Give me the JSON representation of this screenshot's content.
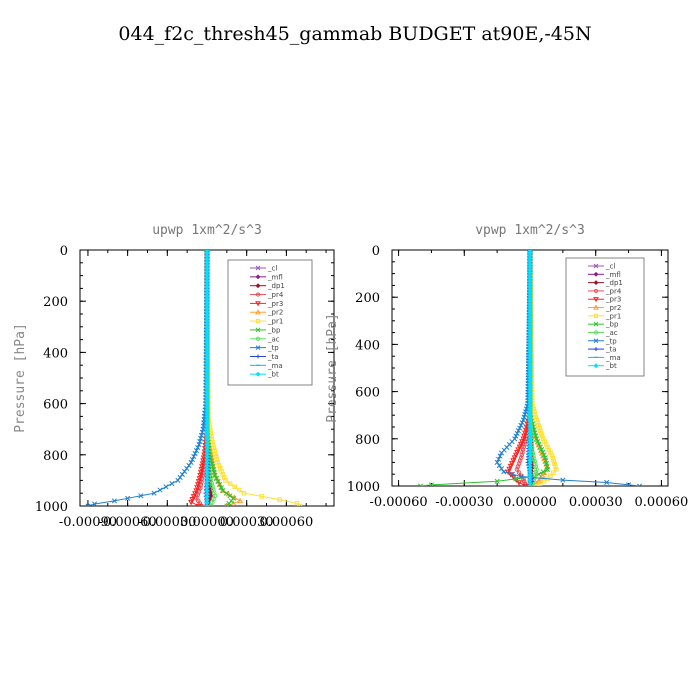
{
  "figure": {
    "title": "044_f2c_thresh45_gammab  BUDGET at90E,-45N"
  },
  "chart_data": [
    {
      "type": "line",
      "title": "upwp   1xm^2/s^3",
      "ylabel": "Pressure [hPa]",
      "xlim": [
        -0.00096,
        0.00096
      ],
      "ylim": [
        1000,
        0
      ],
      "xticks": [
        -0.0009,
        -0.0006,
        -0.0003,
        0.0,
        0.0003,
        0.0006
      ],
      "xtick_labels": [
        "-0.00090",
        "-0.00060",
        "-0.00030",
        "0.00000",
        "0.00030",
        "0.00060"
      ],
      "yticks": [
        0,
        200,
        400,
        600,
        800,
        1000
      ],
      "ytick_labels": [
        "0",
        "200",
        "400",
        "600",
        "800",
        "1000"
      ],
      "legend_position": "top-right",
      "series": [
        {
          "name": "_cl",
          "color": "#9b59b6",
          "marker": "x",
          "values": [
            [
              0,
              0
            ],
            [
              0,
              700
            ],
            [
              0,
              1000
            ]
          ]
        },
        {
          "name": "_mfl",
          "color": "#8e1a8e",
          "marker": "diamond",
          "values": [
            [
              0,
              0
            ],
            [
              0,
              700
            ],
            [
              0,
              1000
            ]
          ]
        },
        {
          "name": "_dp1",
          "color": "#a0102a",
          "marker": "diamond",
          "values": [
            [
              0,
              0
            ],
            [
              0,
              700
            ],
            [
              1e-05,
              800
            ],
            [
              2e-05,
              900
            ],
            [
              3e-05,
              960
            ],
            [
              0,
              1000
            ]
          ]
        },
        {
          "name": "_pr4",
          "color": "#e8505a",
          "marker": "circle",
          "values": [
            [
              0,
              0
            ],
            [
              0,
              700
            ],
            [
              -1e-05,
              800
            ],
            [
              -3e-05,
              870
            ],
            [
              -5e-05,
              930
            ],
            [
              -8e-05,
              970
            ],
            [
              -4e-05,
              1000
            ]
          ]
        },
        {
          "name": "_pr3",
          "color": "#ff2020",
          "marker": "triangle-down",
          "values": [
            [
              0,
              0
            ],
            [
              0,
              700
            ],
            [
              -2e-05,
              800
            ],
            [
              -5e-05,
              880
            ],
            [
              -8e-05,
              940
            ],
            [
              -0.00012,
              985
            ],
            [
              -6e-05,
              1000
            ]
          ]
        },
        {
          "name": "_pr2",
          "color": "#ffa030",
          "marker": "triangle-up",
          "values": [
            [
              0,
              0
            ],
            [
              0,
              700
            ],
            [
              3e-05,
              800
            ],
            [
              6e-05,
              880
            ],
            [
              0.00012,
              940
            ],
            [
              0.00025,
              980
            ],
            [
              0.00015,
              1000
            ]
          ]
        },
        {
          "name": "_pr1",
          "color": "#ffe030",
          "marker": "square",
          "values": [
            [
              0,
              0
            ],
            [
              1e-05,
              660
            ],
            [
              4e-05,
              750
            ],
            [
              8e-05,
              830
            ],
            [
              0.00014,
              900
            ],
            [
              0.00028,
              950
            ],
            [
              0.00055,
              975
            ],
            [
              0.00068,
              990
            ],
            [
              0.0007,
              1000
            ]
          ]
        },
        {
          "name": "_bp",
          "color": "#30c030",
          "marker": "x",
          "values": [
            [
              0,
              0
            ],
            [
              0,
              700
            ],
            [
              2e-05,
              800
            ],
            [
              6e-05,
              880
            ],
            [
              0.00012,
              940
            ],
            [
              0.0002,
              970
            ],
            [
              0.00015,
              1000
            ]
          ]
        },
        {
          "name": "_ac",
          "color": "#60e060",
          "marker": "circle",
          "values": [
            [
              0,
              0
            ],
            [
              0,
              700
            ],
            [
              1e-05,
              820
            ],
            [
              3e-05,
              900
            ],
            [
              6e-05,
              960
            ],
            [
              3e-05,
              1000
            ]
          ]
        },
        {
          "name": "_tp",
          "color": "#2080d0",
          "marker": "x",
          "values": [
            [
              0,
              0
            ],
            [
              -1e-05,
              600
            ],
            [
              -3e-05,
              700
            ],
            [
              -6e-05,
              760
            ],
            [
              -0.00012,
              830
            ],
            [
              -0.00022,
              900
            ],
            [
              -0.0004,
              950
            ],
            [
              -0.0007,
              980
            ],
            [
              -0.00085,
              992
            ],
            [
              -0.0009,
              1000
            ]
          ]
        },
        {
          "name": "_ta",
          "color": "#2040e0",
          "marker": "plus",
          "values": [
            [
              0,
              0
            ],
            [
              0,
              700
            ],
            [
              1e-05,
              850
            ],
            [
              -1e-05,
              950
            ],
            [
              0,
              1000
            ]
          ]
        },
        {
          "name": "_ma",
          "color": "#20b0f0",
          "marker": "dash",
          "values": [
            [
              0,
              0
            ],
            [
              0,
              1000
            ]
          ]
        },
        {
          "name": "_bt",
          "color": "#00e0ff",
          "marker": "diamond",
          "values": [
            [
              0,
              0
            ],
            [
              0,
              1000
            ]
          ]
        }
      ]
    },
    {
      "type": "line",
      "title": "vpwp   1xm^2/s^3",
      "ylabel": "Pressure [hPa]",
      "xlim": [
        -0.00063,
        0.00063
      ],
      "ylim": [
        1000,
        0
      ],
      "xticks": [
        -0.0006,
        -0.0003,
        0.0,
        0.0003,
        0.0006
      ],
      "xtick_labels": [
        "-0.00060",
        "-0.00030",
        "0.00000",
        "0.00030",
        "0.00060"
      ],
      "yticks": [
        0,
        200,
        400,
        600,
        800,
        1000
      ],
      "ytick_labels": [
        "0",
        "200",
        "400",
        "600",
        "800",
        "1000"
      ],
      "legend_position": "top-right",
      "series": [
        {
          "name": "_cl",
          "color": "#9b59b6",
          "marker": "x",
          "values": [
            [
              0,
              0
            ],
            [
              0,
              700
            ],
            [
              0,
              1000
            ]
          ]
        },
        {
          "name": "_mfl",
          "color": "#8e1a8e",
          "marker": "diamond",
          "values": [
            [
              0,
              0
            ],
            [
              0,
              700
            ],
            [
              0,
              1000
            ]
          ]
        },
        {
          "name": "_dp1",
          "color": "#a0102a",
          "marker": "diamond",
          "values": [
            [
              0,
              0
            ],
            [
              0,
              700
            ],
            [
              1e-05,
              900
            ],
            [
              0,
              1000
            ]
          ]
        },
        {
          "name": "_pr4",
          "color": "#e8505a",
          "marker": "circle",
          "values": [
            [
              0,
              0
            ],
            [
              0,
              700
            ],
            [
              -2e-05,
              800
            ],
            [
              -4e-05,
              880
            ],
            [
              -6e-05,
              930
            ],
            [
              -3e-05,
              970
            ],
            [
              -2e-05,
              1000
            ]
          ]
        },
        {
          "name": "_pr3",
          "color": "#ff2020",
          "marker": "triangle-down",
          "values": [
            [
              0,
              0
            ],
            [
              0,
              700
            ],
            [
              -3e-05,
              800
            ],
            [
              -7e-05,
              880
            ],
            [
              -0.0001,
              940
            ],
            [
              -5e-05,
              985
            ],
            [
              -2e-05,
              1000
            ]
          ]
        },
        {
          "name": "_pr2",
          "color": "#ffa030",
          "marker": "triangle-up",
          "values": [
            [
              0,
              0
            ],
            [
              0,
              700
            ],
            [
              2e-05,
              780
            ],
            [
              5e-05,
              850
            ],
            [
              8e-05,
              920
            ],
            [
              4e-05,
              980
            ],
            [
              2e-05,
              1000
            ]
          ]
        },
        {
          "name": "_pr1",
          "color": "#ffe030",
          "marker": "square",
          "values": [
            [
              0,
              0
            ],
            [
              1e-05,
              650
            ],
            [
              3e-05,
              720
            ],
            [
              6e-05,
              800
            ],
            [
              0.0001,
              870
            ],
            [
              0.00012,
              930
            ],
            [
              8e-05,
              970
            ],
            [
              3e-05,
              1000
            ]
          ]
        },
        {
          "name": "_bp",
          "color": "#30c030",
          "marker": "x",
          "values": [
            [
              0,
              0
            ],
            [
              0,
              700
            ],
            [
              3e-05,
              800
            ],
            [
              7e-05,
              880
            ],
            [
              8e-05,
              930
            ],
            [
              2e-05,
              960
            ],
            [
              -0.00015,
              980
            ],
            [
              -0.00045,
              995
            ],
            [
              -0.0005,
              1000
            ]
          ]
        },
        {
          "name": "_ac",
          "color": "#60e060",
          "marker": "circle",
          "values": [
            [
              0,
              0
            ],
            [
              0,
              700
            ],
            [
              1e-05,
              850
            ],
            [
              3e-05,
              930
            ],
            [
              1e-05,
              1000
            ]
          ]
        },
        {
          "name": "_tp",
          "color": "#2080d0",
          "marker": "x",
          "values": [
            [
              0,
              0
            ],
            [
              -1e-05,
              650
            ],
            [
              -3e-05,
              720
            ],
            [
              -7e-05,
              800
            ],
            [
              -0.00013,
              860
            ],
            [
              -0.00015,
              900
            ],
            [
              -0.00012,
              940
            ],
            [
              -4e-05,
              960
            ],
            [
              0.00015,
              975
            ],
            [
              0.00035,
              985
            ],
            [
              0.00045,
              995
            ],
            [
              0.0005,
              1000
            ]
          ]
        },
        {
          "name": "_ta",
          "color": "#2040e0",
          "marker": "plus",
          "values": [
            [
              0,
              0
            ],
            [
              0,
              700
            ],
            [
              -1e-05,
              900
            ],
            [
              1e-05,
              980
            ],
            [
              0,
              1000
            ]
          ]
        },
        {
          "name": "_ma",
          "color": "#20b0f0",
          "marker": "dash",
          "values": [
            [
              0,
              0
            ],
            [
              0,
              1000
            ]
          ]
        },
        {
          "name": "_bt",
          "color": "#00e0ff",
          "marker": "diamond",
          "values": [
            [
              0,
              0
            ],
            [
              0,
              1000
            ]
          ]
        }
      ]
    }
  ]
}
